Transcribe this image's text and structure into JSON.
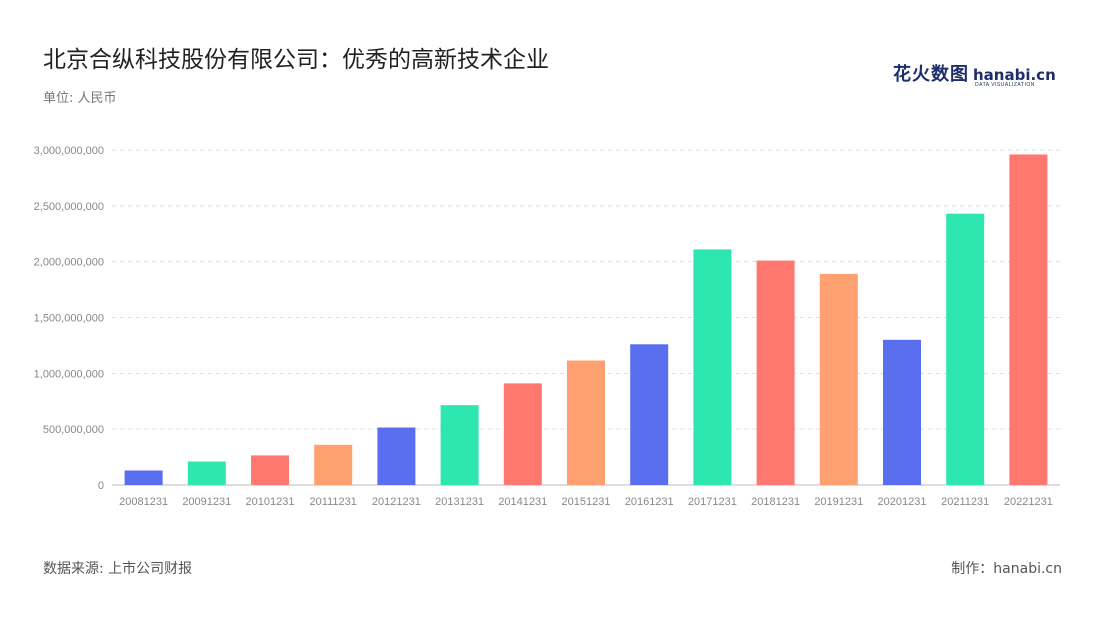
{
  "header": {
    "title": "北京合纵科技股份有限公司：优秀的高新技术企业",
    "unit": "单位: 人民币"
  },
  "logo": {
    "cn": "花火数图",
    "en": "hanabi.cn",
    "tagline": "DATA VISUALIZATION"
  },
  "footer": {
    "source": "数据来源: 上市公司财报",
    "credit": "制作：hanabi.cn"
  },
  "colors": [
    "#5a6ff0",
    "#2ee6b0",
    "#ff7870",
    "#ffa070"
  ],
  "chart_data": {
    "type": "bar",
    "categories": [
      "20081231",
      "20091231",
      "20101231",
      "20111231",
      "20121231",
      "20131231",
      "20141231",
      "20151231",
      "20161231",
      "20171231",
      "20181231",
      "20191231",
      "20201231",
      "20211231",
      "20221231"
    ],
    "values": [
      130000000,
      210000000,
      265000000,
      360000000,
      515000000,
      715000000,
      910000000,
      1115000000,
      1260000000,
      2110000000,
      2010000000,
      1890000000,
      1300000000,
      2430000000,
      2960000000
    ],
    "bar_colors": [
      "#5a6ff0",
      "#2ee6b0",
      "#ff7870",
      "#ffa070",
      "#5a6ff0",
      "#2ee6b0",
      "#ff7870",
      "#ffa070",
      "#5a6ff0",
      "#2ee6b0",
      "#ff7870",
      "#ffa070",
      "#5a6ff0",
      "#2ee6b0",
      "#ff7870"
    ],
    "yticks": [
      0,
      500000000,
      1000000000,
      1500000000,
      2000000000,
      2500000000,
      3000000000
    ],
    "ytick_labels": [
      "0",
      "500,000,000",
      "1,000,000,000",
      "1,500,000,000",
      "2,000,000,000",
      "2,500,000,000",
      "3,000,000,000"
    ],
    "ylim": [
      0,
      3000000000
    ],
    "grid": true
  }
}
